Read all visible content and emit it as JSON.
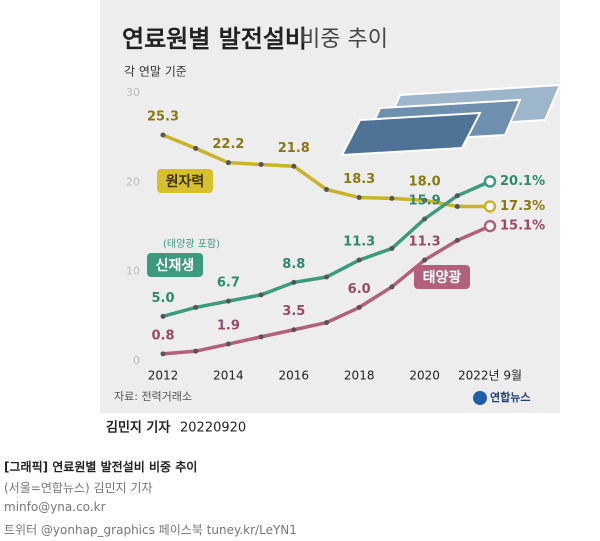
{
  "chart_data": {
    "type": "line",
    "title": "연료원별 발전설비",
    "title_rest": "비중 추이",
    "subtitle": "각 연말 기준",
    "categories": [
      "2012",
      null,
      "2014",
      null,
      "2016",
      null,
      "2018",
      null,
      "2020",
      null,
      "2022년 9월"
    ],
    "series": [
      {
        "name": "원자력",
        "color": "#c9b327",
        "values": [
          25.3,
          23.8,
          22.2,
          22.0,
          21.8,
          19.2,
          18.3,
          18.2,
          18.0,
          17.3,
          17.3
        ],
        "value_labels": [
          "25.3",
          null,
          "22.2",
          null,
          "21.8",
          null,
          "18.3",
          null,
          "18.0",
          null,
          "17.3%"
        ]
      },
      {
        "name": "신재생",
        "color": "#3c9a7f",
        "values": [
          5.0,
          6.0,
          6.7,
          7.4,
          8.8,
          9.4,
          11.3,
          12.6,
          15.9,
          18.5,
          20.1
        ],
        "value_labels": [
          "5.0",
          null,
          "6.7",
          null,
          "8.8",
          null,
          "11.3",
          null,
          "15.9",
          null,
          "20.1%"
        ]
      },
      {
        "name": "태양광",
        "color": "#b3607c",
        "values": [
          0.8,
          1.1,
          1.9,
          2.7,
          3.5,
          4.3,
          6.0,
          8.3,
          11.3,
          13.5,
          15.1
        ],
        "value_labels": [
          "0.8",
          null,
          "1.9",
          null,
          "3.5",
          null,
          "6.0",
          null,
          "11.3",
          null,
          "15.1%"
        ]
      }
    ],
    "annotation": "(태양광 포함)",
    "ylim": [
      0,
      30
    ],
    "yticks": [
      0,
      10,
      20,
      30
    ],
    "grid": false,
    "source": "자료: 전력거래소",
    "logo": "연합뉴스",
    "byline": "김민지 기자",
    "date": "20220920"
  },
  "caption": {
    "headline": "[그래픽] 연료원별 발전설비 비중 추이",
    "credit": "(서울=연합뉴스) 김민지 기자",
    "email": "minfo@yna.co.kr",
    "social": "트위터 @yonhap_graphics 페이스북 tuney.kr/LeYN1"
  }
}
